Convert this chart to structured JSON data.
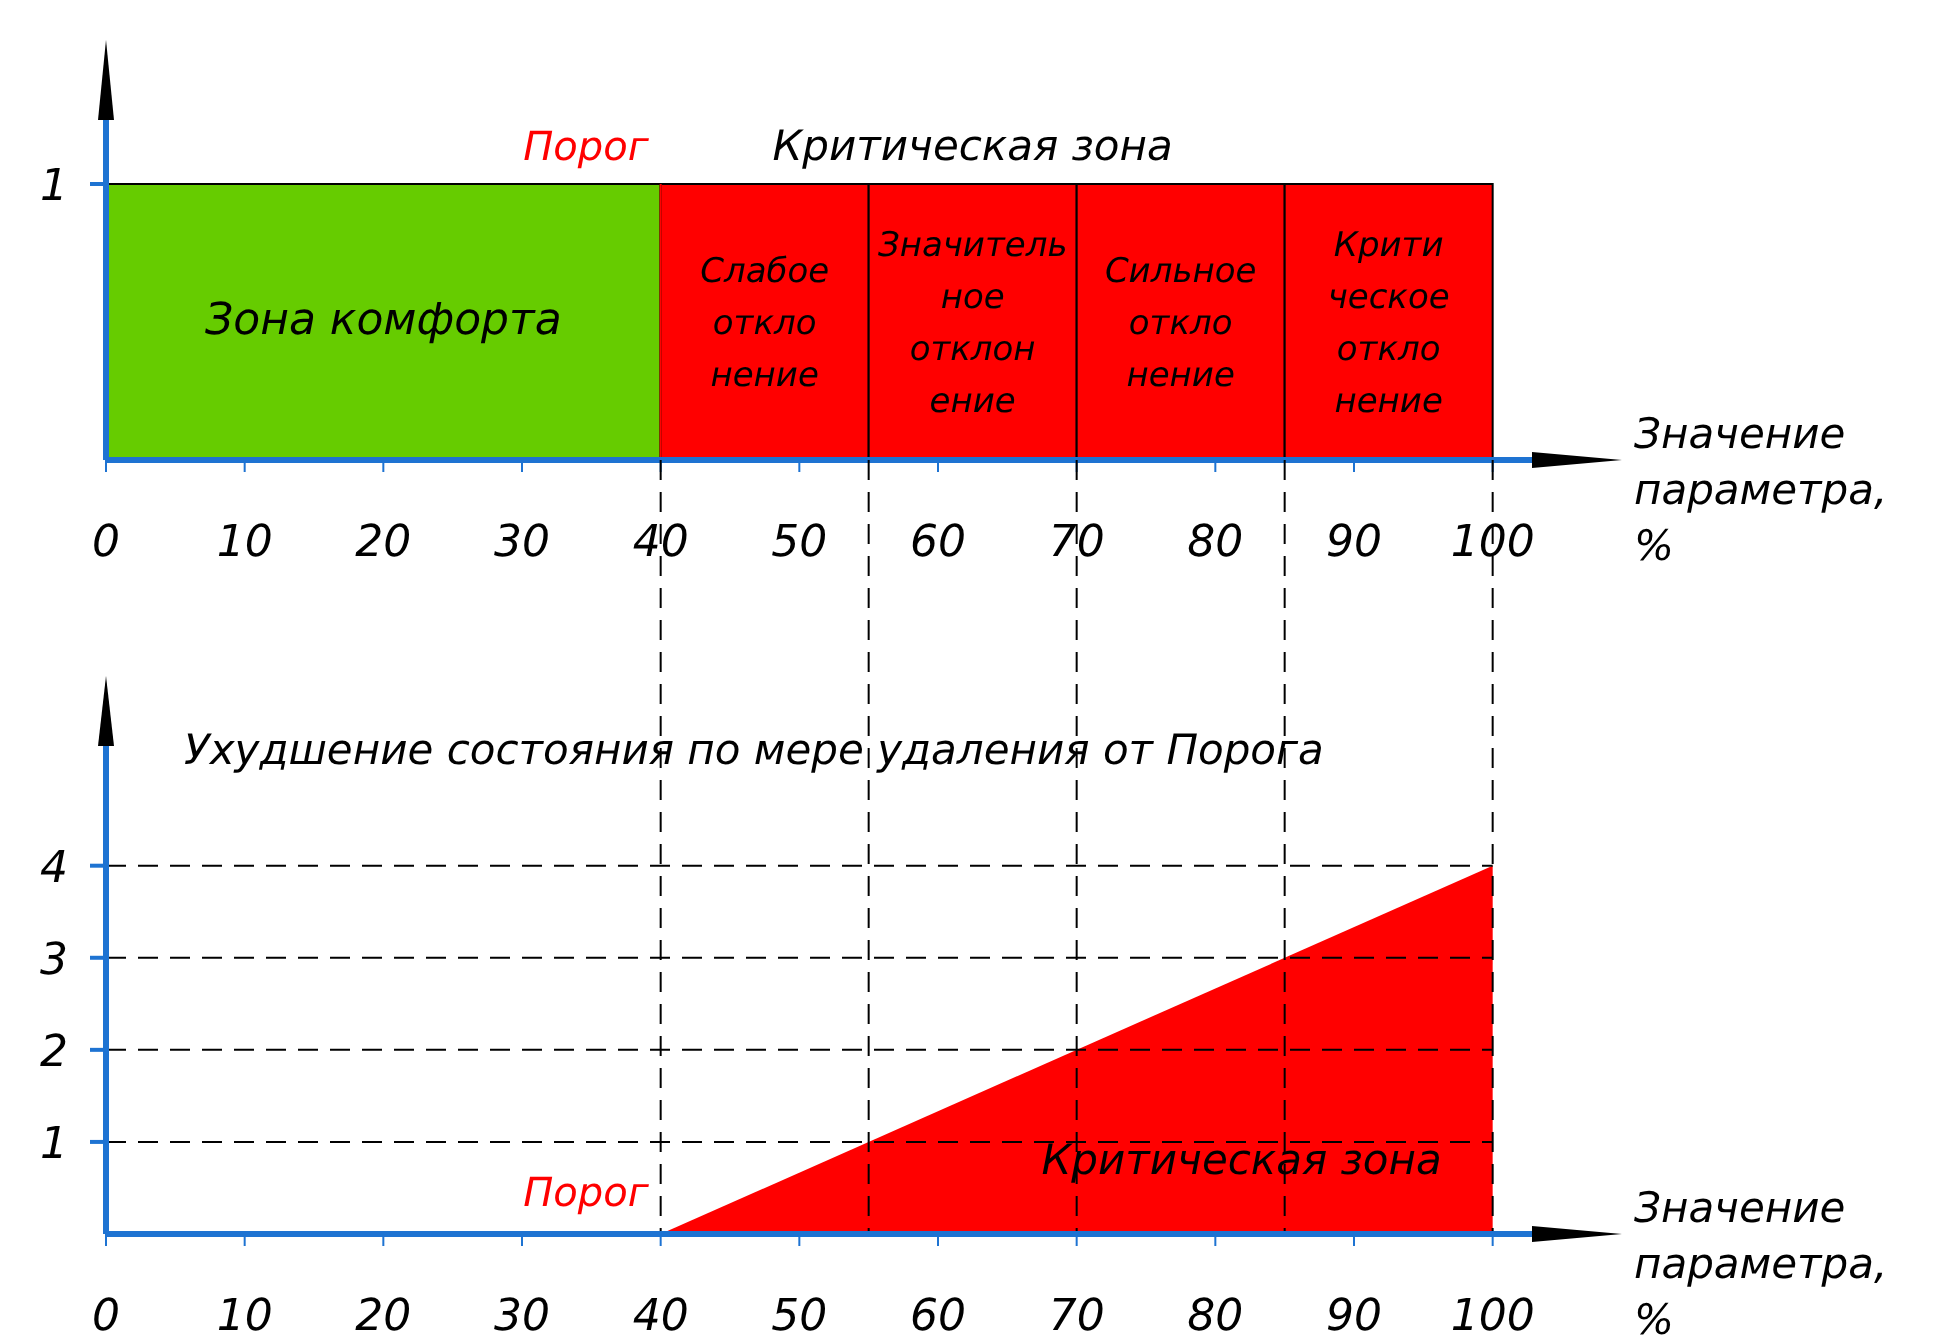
{
  "chart_data": [
    {
      "type": "bar",
      "orientation": "horizontal",
      "stacked": true,
      "xlabel": "Значение параметра, %",
      "xlim": [
        0,
        105
      ],
      "xticks": [
        0,
        10,
        20,
        30,
        40,
        50,
        60,
        70,
        80,
        90,
        100
      ],
      "categories": [
        null
      ],
      "series": [
        {
          "name": "Зона комфорта",
          "color": "#66cc00",
          "values": [
            40
          ]
        },
        {
          "name": "Слабое\nоткло\nнение",
          "color": "#ff0000",
          "values": [
            15
          ]
        },
        {
          "name": "Значитель\nное\nотклон\nение",
          "color": "#ff0000",
          "values": [
            15
          ]
        },
        {
          "name": "Сильное\nоткло\nнение",
          "color": "#ff0000",
          "values": [
            15
          ]
        },
        {
          "name": "Крити\nческое\nоткло\nнение",
          "color": "#ff0000",
          "values": [
            15
          ]
        }
      ],
      "ref_lines": [
        {
          "axis": "x",
          "value": 40,
          "label": "Порог",
          "color": "#ff0000",
          "line_style": "solid"
        }
      ],
      "annotations": [
        "1",
        "Критическая зона"
      ]
    },
    {
      "type": "area",
      "title": "Ухудшение состояния по мере удаления от Порога",
      "xlabel": "Значение параметра, %",
      "xlim": [
        0,
        105
      ],
      "xticks": [
        0,
        10,
        20,
        30,
        40,
        50,
        60,
        70,
        80,
        90,
        100
      ],
      "ylim": [
        0,
        5.3
      ],
      "yticks": [
        1,
        2,
        3,
        4
      ],
      "series": [
        {
          "color": "#ff0000",
          "x": [
            40,
            100
          ],
          "values": [
            0,
            4
          ]
        }
      ],
      "ref_lines": [
        {
          "axis": "x",
          "value": 40,
          "label": "Порог",
          "line_style": "dashed"
        },
        {
          "axis": "x",
          "value": 55,
          "line_style": "dashed"
        },
        {
          "axis": "x",
          "value": 70,
          "line_style": "dashed"
        },
        {
          "axis": "x",
          "value": 85,
          "line_style": "dashed"
        },
        {
          "axis": "x",
          "value": 100,
          "line_style": "dashed"
        },
        {
          "axis": "y",
          "value": 1,
          "line_style": "dashed"
        },
        {
          "axis": "y",
          "value": 2,
          "line_style": "dashed"
        },
        {
          "axis": "y",
          "value": 3,
          "line_style": "dashed"
        },
        {
          "axis": "y",
          "value": 4,
          "line_style": "dashed"
        }
      ],
      "annotations": [
        "Критическая зона"
      ]
    }
  ]
}
